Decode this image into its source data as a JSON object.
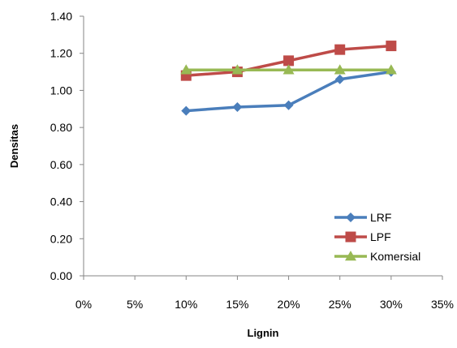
{
  "chart_data": {
    "type": "line",
    "title": "",
    "xlabel": "Lignin",
    "ylabel": "Densitas",
    "x_ticks": [
      "0%",
      "5%",
      "10%",
      "15%",
      "20%",
      "25%",
      "30%",
      "35%"
    ],
    "y_ticks": [
      "0.00",
      "0.20",
      "0.40",
      "0.60",
      "0.80",
      "1.00",
      "1.20",
      "1.40"
    ],
    "xlim": [
      0,
      35
    ],
    "ylim": [
      0,
      1.4
    ],
    "grid": false,
    "legend_position": "bottom-right",
    "x": [
      10,
      15,
      20,
      25,
      30
    ],
    "series": [
      {
        "name": "LRF",
        "color": "#4a7ebb",
        "marker": "diamond",
        "values": [
          0.89,
          0.91,
          0.92,
          1.06,
          1.1
        ]
      },
      {
        "name": "LPF",
        "color": "#be4b48",
        "marker": "square",
        "values": [
          1.08,
          1.1,
          1.16,
          1.22,
          1.24
        ]
      },
      {
        "name": "Komersial",
        "color": "#98b954",
        "marker": "triangle",
        "values": [
          1.11,
          1.11,
          1.11,
          1.11,
          1.11
        ]
      }
    ]
  }
}
